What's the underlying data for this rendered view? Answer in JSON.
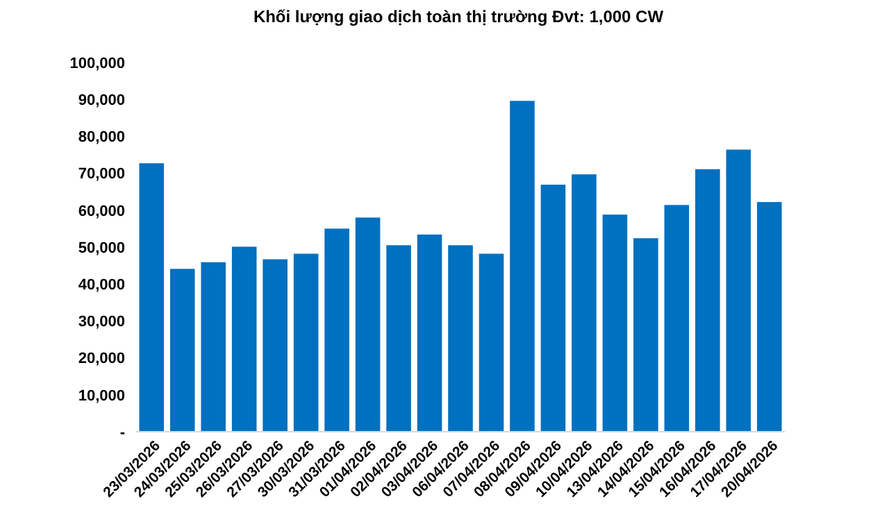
{
  "chart_data": {
    "type": "bar",
    "title": "Khối lượng giao dịch toàn thị trường Đvt: 1,000 CW",
    "categories": [
      "23/03/2026",
      "24/03/2026",
      "25/03/2026",
      "26/03/2026",
      "27/03/2026",
      "30/03/2026",
      "31/03/2026",
      "01/04/2026",
      "02/04/2026",
      "03/04/2026",
      "06/04/2026",
      "07/04/2026",
      "08/04/2026",
      "09/04/2026",
      "10/04/2026",
      "13/04/2026",
      "14/04/2026",
      "15/04/2026",
      "16/04/2026",
      "17/04/2026",
      "20/04/2026"
    ],
    "values": [
      72700,
      44100,
      45900,
      50100,
      46700,
      48200,
      55000,
      58000,
      50500,
      53400,
      50500,
      48200,
      89600,
      66900,
      69700,
      58800,
      52400,
      61400,
      71100,
      76400,
      62200
    ],
    "color": "#0070c0",
    "ylim": [
      0,
      100000
    ],
    "yticks": [
      {
        "value": 0,
        "label": "-"
      },
      {
        "value": 10000,
        "label": "10,000"
      },
      {
        "value": 20000,
        "label": "20,000"
      },
      {
        "value": 30000,
        "label": "30,000"
      },
      {
        "value": 40000,
        "label": "40,000"
      },
      {
        "value": 50000,
        "label": "50,000"
      },
      {
        "value": 60000,
        "label": "60,000"
      },
      {
        "value": 70000,
        "label": "70,000"
      },
      {
        "value": 80000,
        "label": "80,000"
      },
      {
        "value": 90000,
        "label": "90,000"
      },
      {
        "value": 100000,
        "label": "100,000"
      }
    ],
    "grid": false
  }
}
